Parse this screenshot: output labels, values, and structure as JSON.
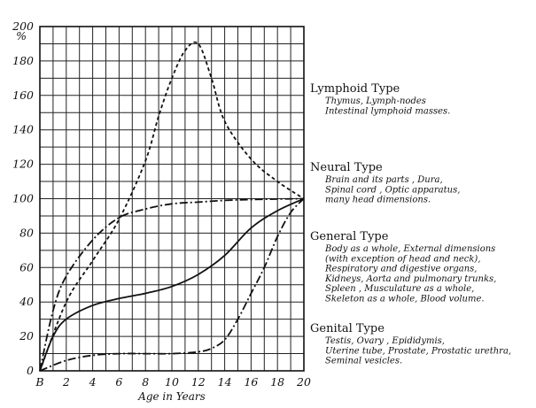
{
  "chart_data": {
    "type": "line",
    "title": "",
    "xlabel": "Age in Years",
    "ylabel": "%",
    "xlim": [
      0,
      20
    ],
    "ylim": [
      0,
      200
    ],
    "grid": true,
    "x_ticks": [
      "B",
      "2",
      "4",
      "6",
      "8",
      "10",
      "12",
      "14",
      "16",
      "18",
      "20"
    ],
    "y_ticks": [
      "0",
      "20",
      "40",
      "60",
      "80",
      "100",
      "120",
      "140",
      "160",
      "180",
      "200"
    ],
    "y_unit_label": "%",
    "series": [
      {
        "name": "Lymphoid Type",
        "dash": "dashed",
        "points": [
          [
            0,
            0
          ],
          [
            2,
            40
          ],
          [
            4,
            64
          ],
          [
            6,
            88
          ],
          [
            8,
            122
          ],
          [
            9,
            148
          ],
          [
            10,
            170
          ],
          [
            11,
            186
          ],
          [
            12,
            190
          ],
          [
            13,
            170
          ],
          [
            14,
            145
          ],
          [
            16,
            123
          ],
          [
            18,
            110
          ],
          [
            20,
            100
          ]
        ]
      },
      {
        "name": "Neural Type",
        "dash": "dash-dot",
        "points": [
          [
            0,
            0
          ],
          [
            1,
            35
          ],
          [
            2,
            55
          ],
          [
            4,
            76
          ],
          [
            6,
            89
          ],
          [
            8,
            94
          ],
          [
            10,
            97
          ],
          [
            12,
            98
          ],
          [
            14,
            99
          ],
          [
            16,
            99.5
          ],
          [
            18,
            99.8
          ],
          [
            20,
            100
          ]
        ]
      },
      {
        "name": "General Type",
        "dash": "solid",
        "points": [
          [
            0,
            0
          ],
          [
            1,
            20
          ],
          [
            2,
            30
          ],
          [
            4,
            38
          ],
          [
            6,
            42
          ],
          [
            8,
            45
          ],
          [
            10,
            49
          ],
          [
            12,
            56
          ],
          [
            14,
            67
          ],
          [
            16,
            83
          ],
          [
            18,
            93
          ],
          [
            20,
            100
          ]
        ]
      },
      {
        "name": "Genital Type",
        "dash": "dash-dot",
        "points": [
          [
            0,
            0
          ],
          [
            2,
            6
          ],
          [
            4,
            9
          ],
          [
            6,
            10
          ],
          [
            8,
            10
          ],
          [
            10,
            10
          ],
          [
            12,
            11
          ],
          [
            13,
            13
          ],
          [
            14,
            18
          ],
          [
            15,
            30
          ],
          [
            16,
            45
          ],
          [
            17,
            60
          ],
          [
            18,
            78
          ],
          [
            19,
            92
          ],
          [
            20,
            100
          ]
        ]
      }
    ],
    "annotations": [
      {
        "title": "Lymphoid Type",
        "lines": [
          "Thymus, Lymph-nodes",
          "Intestinal lymphoid masses."
        ]
      },
      {
        "title": "Neural Type",
        "lines": [
          "Brain and its parts , Dura,",
          "Spinal cord , Optic apparatus,",
          "many head dimensions."
        ]
      },
      {
        "title": "General Type",
        "lines": [
          "Body as a whole, External dimensions",
          "(with exception of head and neck),",
          "Respiratory and digestive organs,",
          "Kidneys, Aorta and pulmonary trunks,",
          "Spleen , Musculature as a whole,",
          "Skeleton as a whole, Blood volume."
        ]
      },
      {
        "title": "Genital Type",
        "lines": [
          "Testis, Ovary , Epididymis,",
          "Uterine tube, Prostate, Prostatic urethra,",
          "Seminal vesicles."
        ]
      }
    ]
  }
}
